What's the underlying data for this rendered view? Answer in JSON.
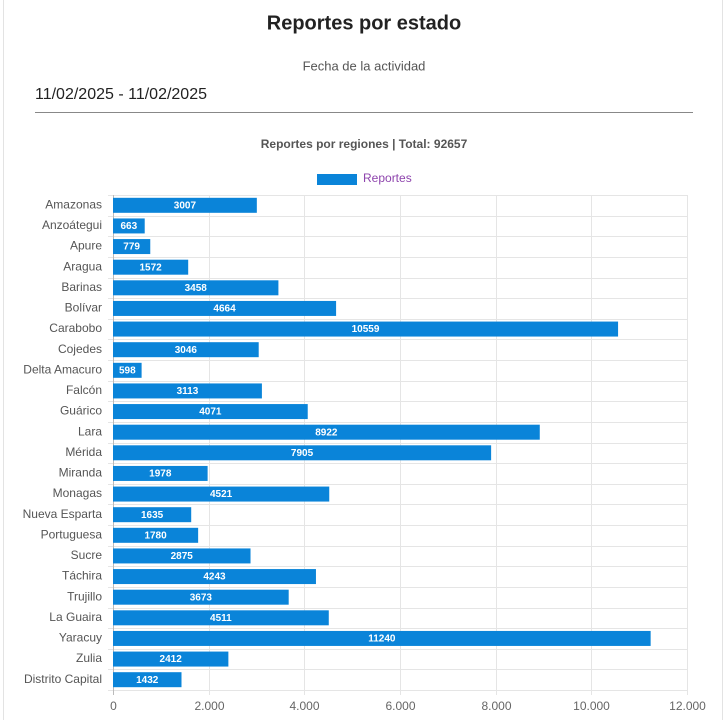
{
  "page": {
    "title": "Reportes por estado",
    "date_label": "Fecha de la actividad",
    "date_value": "11/02/2025 - 11/02/2025"
  },
  "chart_data": {
    "type": "hbar",
    "title": "Reportes por regiones | Total: 92657",
    "categories": [
      "Amazonas",
      "Anzoátegui",
      "Apure",
      "Aragua",
      "Barinas",
      "Bolívar",
      "Carabobo",
      "Cojedes",
      "Delta Amacuro",
      "Falcón",
      "Guárico",
      "Lara",
      "Mérida",
      "Miranda",
      "Monagas",
      "Nueva Esparta",
      "Portuguesa",
      "Sucre",
      "Táchira",
      "Trujillo",
      "La Guaira",
      "Yaracuy",
      "Zulia",
      "Distrito Capital"
    ],
    "series": [
      {
        "name": "Reportes",
        "color": "#0a84d9",
        "values": [
          3007,
          663,
          779,
          1572,
          3458,
          4664,
          10559,
          3046,
          598,
          3113,
          4071,
          8922,
          7905,
          1978,
          4521,
          1635,
          1780,
          2875,
          4243,
          3673,
          4511,
          11240,
          2412,
          1432
        ]
      }
    ],
    "xlim": [
      0,
      12000
    ],
    "xticks": [
      0,
      {
        "value": 2000,
        "label": "2.000"
      },
      {
        "value": 4000,
        "label": "4.000"
      },
      {
        "value": 6000,
        "label": "6.000"
      },
      {
        "value": 8000,
        "label": "8.000"
      },
      {
        "value": 10000,
        "label": "10.000"
      },
      {
        "value": 12000,
        "label": "12.000"
      }
    ],
    "grid": true,
    "legend": "top"
  }
}
